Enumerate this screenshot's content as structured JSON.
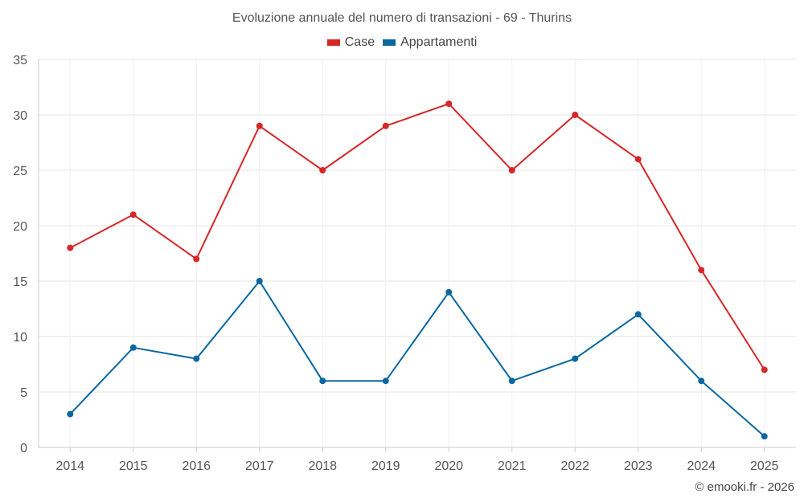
{
  "chart_data": {
    "type": "line",
    "title": "Evoluzione annuale del numero di transazioni - 69 - Thurins",
    "categories": [
      "2014",
      "2015",
      "2016",
      "2017",
      "2018",
      "2019",
      "2020",
      "2021",
      "2022",
      "2023",
      "2024",
      "2025"
    ],
    "series": [
      {
        "name": "Case",
        "color": "#d62728",
        "values": [
          18,
          21,
          17,
          29,
          25,
          29,
          31,
          25,
          30,
          26,
          16,
          7
        ]
      },
      {
        "name": "Appartamenti",
        "color": "#0a67a0",
        "values": [
          3,
          9,
          8,
          15,
          6,
          6,
          14,
          6,
          8,
          12,
          6,
          1
        ]
      }
    ],
    "xlabel": "",
    "ylabel": "",
    "ylim": [
      0,
      35
    ],
    "yticks": [
      0,
      5,
      10,
      15,
      20,
      25,
      30,
      35
    ],
    "grid": true,
    "legend_position": "top-center"
  },
  "credit": "© emooki.fr - 2026"
}
